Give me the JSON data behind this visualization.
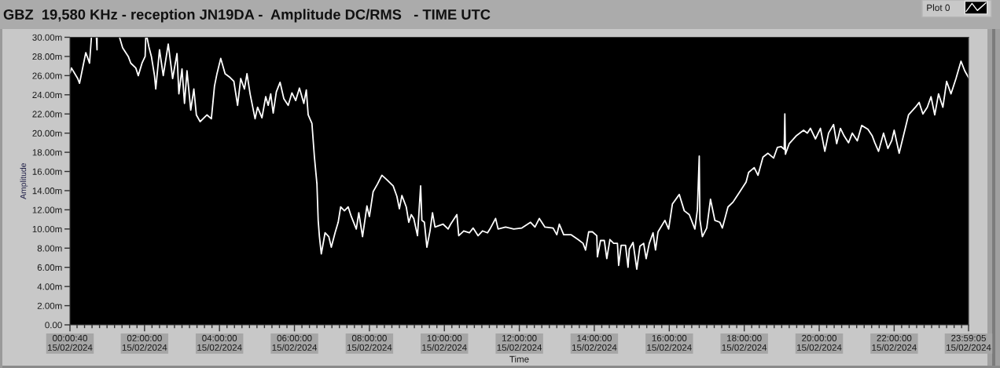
{
  "chart_data": {
    "type": "line",
    "title": "GBZ  19,580 KHz - reception JN19DA -  Amplitude DC/RMS   - TIME UTC",
    "xlabel": "Time",
    "ylabel": "Amplitude",
    "legend": "top right",
    "line_style": "solid",
    "x": [
      "2024-02-15T00:01",
      "2024-02-15T00:03",
      "2024-02-15T00:13",
      "2024-02-15T00:16",
      "2024-02-15T00:26",
      "2024-02-15T00:32",
      "2024-02-15T00:35",
      "2024-02-15T00:40",
      "2024-02-15T00:43",
      "2024-02-15T00:44",
      "2024-02-15T00:44",
      "2024-02-15T01:00",
      "2024-02-15T01:20",
      "2024-02-15T01:25",
      "2024-02-15T01:34",
      "2024-02-15T01:38",
      "2024-02-15T01:46",
      "2024-02-15T01:50",
      "2024-02-15T01:56",
      "2024-02-15T02:01",
      "2024-02-15T02:02",
      "2024-02-15T02:03",
      "2024-02-15T02:04",
      "2024-02-15T02:07",
      "2024-02-15T02:11",
      "2024-02-15T02:16",
      "2024-02-15T02:18",
      "2024-02-15T02:24",
      "2024-02-15T02:30",
      "2024-02-15T02:38",
      "2024-02-15T02:45",
      "2024-02-15T02:52",
      "2024-02-15T02:55",
      "2024-02-15T03:00",
      "2024-02-15T03:04",
      "2024-02-15T03:08",
      "2024-02-15T03:14",
      "2024-02-15T03:19",
      "2024-02-15T03:23",
      "2024-02-15T03:29",
      "2024-02-15T03:40",
      "2024-02-15T03:47",
      "2024-02-15T03:52",
      "2024-02-15T03:56",
      "2024-02-15T04:02",
      "2024-02-15T04:09",
      "2024-02-15T04:17",
      "2024-02-15T04:23",
      "2024-02-15T04:29",
      "2024-02-15T04:34",
      "2024-02-15T04:40",
      "2024-02-15T04:44",
      "2024-02-15T04:49",
      "2024-02-15T04:57",
      "2024-02-15T05:01",
      "2024-02-15T05:08",
      "2024-02-15T05:14",
      "2024-02-15T05:18",
      "2024-02-15T05:22",
      "2024-02-15T05:26",
      "2024-02-15T05:31",
      "2024-02-15T05:37",
      "2024-02-15T05:43",
      "2024-02-15T05:50",
      "2024-02-15T05:56",
      "2024-02-15T06:02",
      "2024-02-15T06:08",
      "2024-02-15T06:15",
      "2024-02-15T06:19",
      "2024-02-15T06:22",
      "2024-02-15T06:28",
      "2024-02-15T06:32",
      "2024-02-15T06:36",
      "2024-02-15T06:38",
      "2024-02-15T06:40",
      "2024-02-15T06:43",
      "2024-02-15T06:49",
      "2024-02-15T06:55",
      "2024-02-15T06:59",
      "2024-02-15T07:05",
      "2024-02-15T07:10",
      "2024-02-15T07:14",
      "2024-02-15T07:20",
      "2024-02-15T07:26",
      "2024-02-15T07:31",
      "2024-02-15T07:39",
      "2024-02-15T07:43",
      "2024-02-15T07:49",
      "2024-02-15T07:56",
      "2024-02-15T08:00",
      "2024-02-15T08:06",
      "2024-02-15T08:13",
      "2024-02-15T08:20",
      "2024-02-15T08:27",
      "2024-02-15T08:38",
      "2024-02-15T08:44",
      "2024-02-15T08:48",
      "2024-02-15T08:52",
      "2024-02-15T08:59",
      "2024-02-15T09:03",
      "2024-02-15T09:07",
      "2024-02-15T09:11",
      "2024-02-15T09:16",
      "2024-02-15T09:17",
      "2024-02-15T09:22",
      "2024-02-15T09:24",
      "2024-02-15T09:28",
      "2024-02-15T09:32",
      "2024-02-15T09:37",
      "2024-02-15T09:41",
      "2024-02-15T09:45",
      "2024-02-15T09:58",
      "2024-02-15T10:06",
      "2024-02-15T10:10",
      "2024-02-15T10:20",
      "2024-02-15T10:23",
      "2024-02-15T10:31",
      "2024-02-15T10:40",
      "2024-02-15T10:46",
      "2024-02-15T10:54",
      "2024-02-15T11:01",
      "2024-02-15T11:09",
      "2024-02-15T11:13",
      "2024-02-15T11:22",
      "2024-02-15T11:26",
      "2024-02-15T11:38",
      "2024-02-15T11:51",
      "2024-02-15T12:04",
      "2024-02-15T12:18",
      "2024-02-15T12:25",
      "2024-02-15T12:32",
      "2024-02-15T12:41",
      "2024-02-15T12:54",
      "2024-02-15T13:00",
      "2024-02-15T13:04",
      "2024-02-15T13:11",
      "2024-02-15T13:23",
      "2024-02-15T13:34",
      "2024-02-15T13:42",
      "2024-02-15T13:46",
      "2024-02-15T13:51",
      "2024-02-15T13:57",
      "2024-02-15T14:04",
      "2024-02-15T14:05",
      "2024-02-15T14:10",
      "2024-02-15T14:16",
      "2024-02-15T14:20",
      "2024-02-15T14:25",
      "2024-02-15T14:31",
      "2024-02-15T14:37",
      "2024-02-15T14:39",
      "2024-02-15T14:43",
      "2024-02-15T14:50",
      "2024-02-15T14:54",
      "2024-02-15T14:56",
      "2024-02-15T15:02",
      "2024-02-15T15:08",
      "2024-02-15T15:13",
      "2024-02-15T15:19",
      "2024-02-15T15:23",
      "2024-02-15T15:28",
      "2024-02-15T15:34",
      "2024-02-15T15:38",
      "2024-02-15T15:42",
      "2024-02-15T15:53",
      "2024-02-15T15:59",
      "2024-02-15T16:05",
      "2024-02-15T16:16",
      "2024-02-15T16:24",
      "2024-02-15T16:32",
      "2024-02-15T16:41",
      "2024-02-15T16:45",
      "2024-02-15T16:48",
      "2024-02-15T16:49",
      "2024-02-15T16:53",
      "2024-02-15T17:00",
      "2024-02-15T17:06",
      "2024-02-15T17:13",
      "2024-02-15T17:21",
      "2024-02-15T17:25",
      "2024-02-15T17:34",
      "2024-02-15T17:42",
      "2024-02-15T17:52",
      "2024-02-15T18:03",
      "2024-02-15T18:07",
      "2024-02-15T18:16",
      "2024-02-15T18:22",
      "2024-02-15T18:30",
      "2024-02-15T18:38",
      "2024-02-15T18:47",
      "2024-02-15T18:53",
      "2024-02-15T18:59",
      "2024-02-15T19:04",
      "2024-02-15T19:05",
      "2024-02-15T19:06",
      "2024-02-15T19:12",
      "2024-02-15T19:23",
      "2024-02-15T19:35",
      "2024-02-15T19:41",
      "2024-02-15T19:46",
      "2024-02-15T19:54",
      "2024-02-15T20:02",
      "2024-02-15T20:09",
      "2024-02-15T20:15",
      "2024-02-15T20:23",
      "2024-02-15T20:28",
      "2024-02-15T20:34",
      "2024-02-15T20:40",
      "2024-02-15T20:47",
      "2024-02-15T20:53",
      "2024-02-15T21:01",
      "2024-02-15T21:08",
      "2024-02-15T21:18",
      "2024-02-15T21:25",
      "2024-02-15T21:29",
      "2024-02-15T21:35",
      "2024-02-15T21:43",
      "2024-02-15T21:50",
      "2024-02-15T21:56",
      "2024-02-15T22:00",
      "2024-02-15T22:08",
      "2024-02-15T22:17",
      "2024-02-15T22:23",
      "2024-02-15T22:34",
      "2024-02-15T22:40",
      "2024-02-15T22:46",
      "2024-02-15T22:53",
      "2024-02-15T22:59",
      "2024-02-15T23:05",
      "2024-02-15T23:11",
      "2024-02-15T23:18",
      "2024-02-15T23:24",
      "2024-02-15T23:31",
      "2024-02-15T23:39",
      "2024-02-15T23:47",
      "2024-02-15T23:53",
      "2024-02-15T23:59"
    ],
    "series": [
      {
        "name": "Plot 0",
        "color": "#ffffff",
        "values": [
          26.3,
          26.8,
          25.7,
          25.2,
          28.4,
          27.3,
          30,
          null,
          30,
          28.7,
          30,
          null,
          30,
          28.9,
          28.0,
          27.3,
          26.8,
          26.0,
          27.3,
          28.0,
          30,
          null,
          30,
          29.0,
          28.0,
          26.0,
          24.6,
          28.7,
          26.0,
          29.3,
          25.7,
          28.3,
          24.1,
          26.7,
          23.1,
          26.5,
          22.4,
          24.6,
          21.9,
          21.2,
          21.9,
          21.5,
          24.9,
          26.2,
          27.8,
          26.2,
          25.8,
          25.4,
          22.9,
          25.7,
          24.6,
          26.2,
          24.1,
          21.5,
          22.7,
          21.6,
          23.8,
          22.9,
          24.1,
          22.1,
          24.3,
          25.3,
          23.6,
          22.9,
          24.2,
          23.4,
          24.7,
          23.1,
          24.5,
          21.9,
          21.0,
          17.5,
          14.7,
          10.9,
          9.2,
          7.4,
          9.6,
          9.2,
          8.1,
          9.6,
          10.7,
          12.3,
          11.9,
          12.3,
          11.3,
          10.0,
          11.7,
          9.2,
          12.4,
          11.3,
          13.9,
          14.7,
          15.6,
          15.2,
          14.5,
          13.4,
          12.1,
          13.5,
          12.3,
          10.7,
          11.5,
          11.1,
          9.6,
          9.3,
          14.5,
          10.9,
          10.7,
          8.1,
          9.8,
          11.7,
          10.2,
          10.5,
          10.0,
          10.5,
          11.5,
          9.3,
          9.8,
          9.6,
          10.1,
          9.3,
          9.8,
          9.6,
          10.0,
          11.1,
          10.0,
          10.2,
          10.0,
          10.1,
          10.7,
          10.2,
          11.1,
          10.2,
          10.1,
          9.4,
          10.5,
          9.4,
          9.4,
          8.9,
          8.5,
          7.8,
          9.7,
          9.7,
          9.3,
          7.1,
          8.8,
          8.8,
          6.9,
          8.9,
          8.5,
          8.5,
          6.2,
          8.3,
          8.3,
          6.0,
          7.9,
          8.6,
          5.8,
          8.2,
          8.5,
          6.9,
          8.5,
          9.6,
          7.8,
          9.7,
          10.9,
          10.0,
          12.6,
          13.6,
          11.9,
          11.5,
          10.0,
          12.0,
          17.6,
          11.0,
          9.2,
          10.1,
          13.1,
          10.9,
          10.7,
          10.1,
          12.3,
          12.8,
          13.8,
          14.9,
          15.9,
          16.4,
          15.6,
          17.5,
          17.9,
          17.4,
          18.5,
          18.6,
          18.3,
          22.0,
          17.8,
          18.9,
          19.7,
          20.3,
          20.0,
          20.5,
          19.4,
          20.5,
          18.1,
          20.0,
          20.9,
          18.9,
          20.5,
          19.7,
          19.0,
          20.0,
          19.2,
          20.8,
          20.4,
          19.7,
          19.0,
          18.1,
          20.0,
          18.4,
          19.2,
          20.3,
          17.9,
          20.3,
          21.9,
          22.7,
          23.2,
          22.0,
          22.7,
          23.8,
          21.9,
          24.1,
          22.7,
          25.4,
          24.1,
          25.7,
          27.5,
          26.5,
          25.8
        ]
      }
    ],
    "xlim": [
      "2024-02-15T00:00:40",
      "2024-02-15T23:59:05"
    ],
    "xticks": [
      {
        "value": "2024-02-15T00:00:40",
        "label": "00:00:40\n15/02/2024"
      },
      {
        "value": "2024-02-15T02:00",
        "label": "02:00:00\n15/02/2024"
      },
      {
        "value": "2024-02-15T04:00",
        "label": "04:00:00\n15/02/2024"
      },
      {
        "value": "2024-02-15T06:00",
        "label": "06:00:00\n15/02/2024"
      },
      {
        "value": "2024-02-15T08:00",
        "label": "08:00:00\n15/02/2024"
      },
      {
        "value": "2024-02-15T10:00",
        "label": "10:00:00\n15/02/2024"
      },
      {
        "value": "2024-02-15T12:00",
        "label": "12:00:00\n15/02/2024"
      },
      {
        "value": "2024-02-15T14:00",
        "label": "14:00:00\n15/02/2024"
      },
      {
        "value": "2024-02-15T16:00",
        "label": "16:00:00\n15/02/2024"
      },
      {
        "value": "2024-02-15T18:00",
        "label": "18:00:00\n15/02/2024"
      },
      {
        "value": "2024-02-15T20:00",
        "label": "20:00:00\n15/02/2024"
      },
      {
        "value": "2024-02-15T22:00",
        "label": "22:00:00\n15/02/2024"
      },
      {
        "value": "2024-02-15T23:59:05",
        "label": "23:59:05\n15/02/2024"
      },
      {
        "value": "2024-02-15T00:12",
        "label": null
      },
      {
        "value": "2024-02-15T00:24",
        "label": null
      },
      {
        "value": "2024-02-15T00:36",
        "label": null
      },
      {
        "value": "2024-02-15T00:48",
        "label": null
      },
      {
        "value": "2024-02-15T01:00",
        "label": null
      },
      {
        "value": "2024-02-15T01:12",
        "label": null
      },
      {
        "value": "2024-02-15T01:24",
        "label": null
      },
      {
        "value": "2024-02-15T01:36",
        "label": null
      },
      {
        "value": "2024-02-15T01:48",
        "label": null
      },
      {
        "value": "2024-02-15T02:12",
        "label": null
      },
      {
        "value": "2024-02-15T02:24",
        "label": null
      },
      {
        "value": "2024-02-15T02:36",
        "label": null
      },
      {
        "value": "2024-02-15T02:48",
        "label": null
      },
      {
        "value": "2024-02-15T03:00",
        "label": null
      },
      {
        "value": "2024-02-15T03:12",
        "label": null
      },
      {
        "value": "2024-02-15T03:24",
        "label": null
      },
      {
        "value": "2024-02-15T03:36",
        "label": null
      },
      {
        "value": "2024-02-15T03:48",
        "label": null
      },
      {
        "value": "2024-02-15T04:12",
        "label": null
      },
      {
        "value": "2024-02-15T04:24",
        "label": null
      },
      {
        "value": "2024-02-15T04:36",
        "label": null
      },
      {
        "value": "2024-02-15T04:48",
        "label": null
      },
      {
        "value": "2024-02-15T05:00",
        "label": null
      },
      {
        "value": "2024-02-15T05:12",
        "label": null
      },
      {
        "value": "2024-02-15T05:24",
        "label": null
      },
      {
        "value": "2024-02-15T05:36",
        "label": null
      },
      {
        "value": "2024-02-15T05:48",
        "label": null
      },
      {
        "value": "2024-02-15T06:12",
        "label": null
      },
      {
        "value": "2024-02-15T06:24",
        "label": null
      },
      {
        "value": "2024-02-15T06:36",
        "label": null
      },
      {
        "value": "2024-02-15T06:48",
        "label": null
      },
      {
        "value": "2024-02-15T07:00",
        "label": null
      },
      {
        "value": "2024-02-15T07:12",
        "label": null
      },
      {
        "value": "2024-02-15T07:24",
        "label": null
      },
      {
        "value": "2024-02-15T07:36",
        "label": null
      },
      {
        "value": "2024-02-15T07:48",
        "label": null
      },
      {
        "value": "2024-02-15T08:12",
        "label": null
      },
      {
        "value": "2024-02-15T08:24",
        "label": null
      },
      {
        "value": "2024-02-15T08:36",
        "label": null
      },
      {
        "value": "2024-02-15T08:48",
        "label": null
      },
      {
        "value": "2024-02-15T09:00",
        "label": null
      },
      {
        "value": "2024-02-15T09:12",
        "label": null
      },
      {
        "value": "2024-02-15T09:24",
        "label": null
      },
      {
        "value": "2024-02-15T09:36",
        "label": null
      },
      {
        "value": "2024-02-15T09:48",
        "label": null
      },
      {
        "value": "2024-02-15T10:12",
        "label": null
      },
      {
        "value": "2024-02-15T10:24",
        "label": null
      },
      {
        "value": "2024-02-15T10:36",
        "label": null
      },
      {
        "value": "2024-02-15T10:48",
        "label": null
      },
      {
        "value": "2024-02-15T11:00",
        "label": null
      },
      {
        "value": "2024-02-15T11:12",
        "label": null
      },
      {
        "value": "2024-02-15T11:24",
        "label": null
      },
      {
        "value": "2024-02-15T11:36",
        "label": null
      },
      {
        "value": "2024-02-15T11:48",
        "label": null
      },
      {
        "value": "2024-02-15T12:12",
        "label": null
      },
      {
        "value": "2024-02-15T12:24",
        "label": null
      },
      {
        "value": "2024-02-15T12:36",
        "label": null
      },
      {
        "value": "2024-02-15T12:48",
        "label": null
      },
      {
        "value": "2024-02-15T13:00",
        "label": null
      },
      {
        "value": "2024-02-15T13:12",
        "label": null
      },
      {
        "value": "2024-02-15T13:24",
        "label": null
      },
      {
        "value": "2024-02-15T13:36",
        "label": null
      },
      {
        "value": "2024-02-15T13:48",
        "label": null
      },
      {
        "value": "2024-02-15T14:12",
        "label": null
      },
      {
        "value": "2024-02-15T14:24",
        "label": null
      },
      {
        "value": "2024-02-15T14:36",
        "label": null
      },
      {
        "value": "2024-02-15T14:48",
        "label": null
      },
      {
        "value": "2024-02-15T15:00",
        "label": null
      },
      {
        "value": "2024-02-15T15:12",
        "label": null
      },
      {
        "value": "2024-02-15T15:24",
        "label": null
      },
      {
        "value": "2024-02-15T15:36",
        "label": null
      },
      {
        "value": "2024-02-15T15:48",
        "label": null
      },
      {
        "value": "2024-02-15T16:12",
        "label": null
      },
      {
        "value": "2024-02-15T16:24",
        "label": null
      },
      {
        "value": "2024-02-15T16:36",
        "label": null
      },
      {
        "value": "2024-02-15T16:48",
        "label": null
      },
      {
        "value": "2024-02-15T17:00",
        "label": null
      },
      {
        "value": "2024-02-15T17:12",
        "label": null
      },
      {
        "value": "2024-02-15T17:24",
        "label": null
      },
      {
        "value": "2024-02-15T17:36",
        "label": null
      },
      {
        "value": "2024-02-15T17:48",
        "label": null
      },
      {
        "value": "2024-02-15T18:12",
        "label": null
      },
      {
        "value": "2024-02-15T18:24",
        "label": null
      },
      {
        "value": "2024-02-15T18:36",
        "label": null
      },
      {
        "value": "2024-02-15T18:48",
        "label": null
      },
      {
        "value": "2024-02-15T19:00",
        "label": null
      },
      {
        "value": "2024-02-15T19:12",
        "label": null
      },
      {
        "value": "2024-02-15T19:24",
        "label": null
      },
      {
        "value": "2024-02-15T19:36",
        "label": null
      },
      {
        "value": "2024-02-15T19:48",
        "label": null
      },
      {
        "value": "2024-02-15T20:12",
        "label": null
      },
      {
        "value": "2024-02-15T20:24",
        "label": null
      },
      {
        "value": "2024-02-15T20:36",
        "label": null
      },
      {
        "value": "2024-02-15T20:48",
        "label": null
      },
      {
        "value": "2024-02-15T21:00",
        "label": null
      },
      {
        "value": "2024-02-15T21:12",
        "label": null
      },
      {
        "value": "2024-02-15T21:24",
        "label": null
      },
      {
        "value": "2024-02-15T21:36",
        "label": null
      },
      {
        "value": "2024-02-15T21:48",
        "label": null
      },
      {
        "value": "2024-02-15T22:12",
        "label": null
      },
      {
        "value": "2024-02-15T22:24",
        "label": null
      },
      {
        "value": "2024-02-15T22:36",
        "label": null
      },
      {
        "value": "2024-02-15T22:48",
        "label": null
      },
      {
        "value": "2024-02-15T23:00",
        "label": null
      },
      {
        "value": "2024-02-15T23:12",
        "label": null
      },
      {
        "value": "2024-02-15T23:24",
        "label": null
      },
      {
        "value": "2024-02-15T23:36",
        "label": null
      },
      {
        "value": "2024-02-15T23:48",
        "label": null
      }
    ],
    "ylim": [
      0,
      30
    ],
    "yticks": [
      {
        "value": 0,
        "label": "0.00"
      },
      {
        "value": 2,
        "label": "2.00m"
      },
      {
        "value": 4,
        "label": "4.00m"
      },
      {
        "value": 6,
        "label": "6.00m"
      },
      {
        "value": 8,
        "label": "8.00m"
      },
      {
        "value": 10,
        "label": "10.00m"
      },
      {
        "value": 12,
        "label": "12.00m"
      },
      {
        "value": 14,
        "label": "14.00m"
      },
      {
        "value": 16,
        "label": "16.00m"
      },
      {
        "value": 18,
        "label": "18.00m"
      },
      {
        "value": 20,
        "label": "20.00m"
      },
      {
        "value": 22,
        "label": "22.00m"
      },
      {
        "value": 24,
        "label": "24.00m"
      },
      {
        "value": 26,
        "label": "26.00m"
      },
      {
        "value": 28,
        "label": "28.00m"
      },
      {
        "value": 30,
        "label": "30.00m"
      }
    ]
  }
}
